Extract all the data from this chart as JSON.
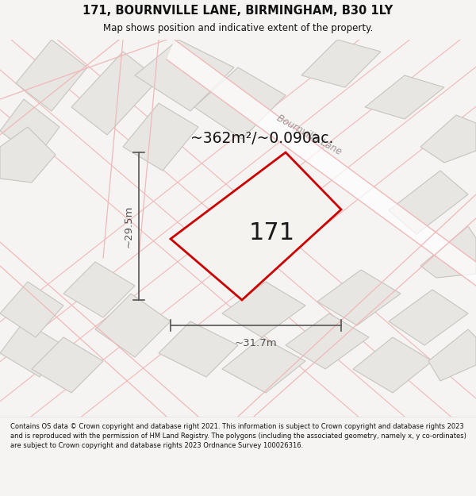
{
  "title": "171, BOURNVILLE LANE, BIRMINGHAM, B30 1LY",
  "subtitle": "Map shows position and indicative extent of the property.",
  "area_text": "~362m²/~0.090ac.",
  "plot_number": "171",
  "width_label": "~31.7m",
  "height_label": "~29.5m",
  "footer": "Contains OS data © Crown copyright and database right 2021. This information is subject to Crown copyright and database rights 2023 and is reproduced with the permission of HM Land Registry. The polygons (including the associated geometry, namely x, y co-ordinates) are subject to Crown copyright and database rights 2023 Ordnance Survey 100026316.",
  "bg_color": "#f5f4f2",
  "map_bg": "#f8f8f6",
  "plot_fill": "#f0eeea",
  "plot_edge": "#cc0000",
  "parcel_fill": "#e8e6e2",
  "parcel_edge": "#c8c4c0",
  "road_line_color": "#f0b8b8",
  "road_label_color": "#a09898",
  "dim_color": "#555555",
  "title_color": "#111111",
  "footer_color": "#111111",
  "footer_bg": "#ffffff"
}
